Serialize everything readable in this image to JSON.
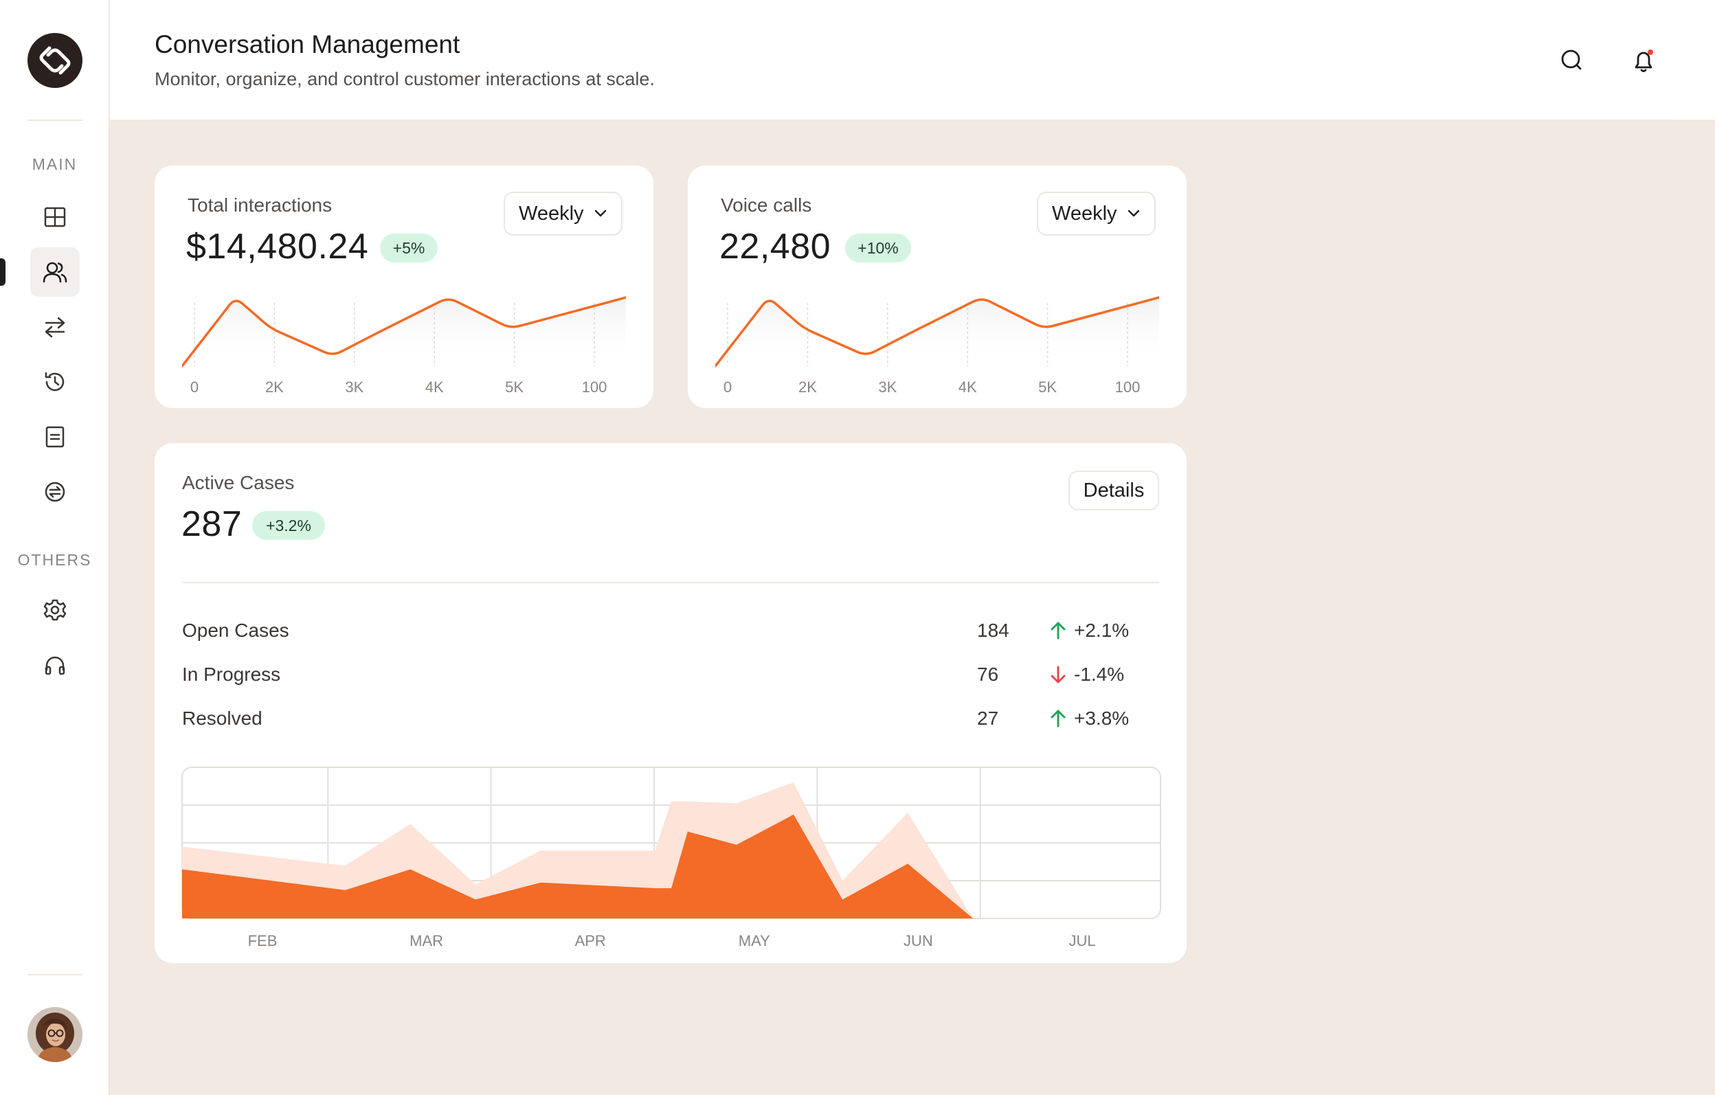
{
  "sidebar": {
    "main_label": "MAIN",
    "others_label": "OTHERS",
    "items": [
      {
        "icon": "dashboard-icon"
      },
      {
        "icon": "users-icon",
        "active": true
      },
      {
        "icon": "transfer-icon"
      },
      {
        "icon": "history-icon"
      },
      {
        "icon": "document-icon"
      },
      {
        "icon": "billing-icon"
      }
    ],
    "other_items": [
      {
        "icon": "settings-icon"
      },
      {
        "icon": "support-icon"
      }
    ]
  },
  "header": {
    "title": "Conversation Management",
    "subtitle": "Monitor, organize, and control customer interactions at scale.",
    "notification_dot_color": "#f04438"
  },
  "cards": {
    "total": {
      "label": "Total interactions",
      "value": "$14,480.24",
      "badge": "+5%",
      "period": "Weekly"
    },
    "voice": {
      "label": "Voice calls",
      "value": "22,480",
      "badge": "+10%",
      "period": "Weekly"
    },
    "active": {
      "label": "Active Cases",
      "value": "287",
      "badge": "+3.2%",
      "details_label": "Details",
      "rows": [
        {
          "label": "Open Cases",
          "count": "184",
          "delta": "+2.1%",
          "trend": "up"
        },
        {
          "label": "In Progress",
          "count": "76",
          "delta": "-1.4%",
          "trend": "down"
        },
        {
          "label": "Resolved",
          "count": "27",
          "delta": "+3.8%",
          "trend": "up"
        }
      ]
    }
  },
  "colors": {
    "accent": "#f36b26",
    "accent_light": "#fde3d8",
    "up": "#22a559",
    "down": "#e5484d",
    "badge_bg": "#d5f5e2"
  },
  "chart_data": [
    {
      "type": "line",
      "categories": [
        "0",
        "2K",
        "3K",
        "4K",
        "5K",
        "100"
      ],
      "values": [
        0,
        1,
        0.55,
        0.15,
        0.55,
        1,
        0.55,
        1
      ],
      "x": [
        0,
        0.6,
        1.0,
        1.7,
        2.3,
        3.0,
        3.7,
        5.0
      ]
    },
    {
      "type": "line",
      "categories": [
        "0",
        "2K",
        "3K",
        "4K",
        "5K",
        "100"
      ],
      "values": [
        0,
        1,
        0.55,
        0.15,
        0.55,
        1,
        0.55,
        1
      ],
      "x": [
        0,
        0.6,
        1.0,
        1.7,
        2.3,
        3.0,
        3.7,
        5.0
      ]
    },
    {
      "type": "area",
      "categories": [
        "FEB",
        "MAR",
        "APR",
        "MAY",
        "JUN",
        "JUL"
      ],
      "ylim": [
        0,
        4
      ],
      "series": [
        {
          "x": [
            0,
            1.0,
            1.4,
            1.8,
            2.2,
            2.9,
            3.0,
            3.1,
            3.4,
            3.75,
            4.05,
            4.45,
            4.85,
            5.2,
            5.5,
            6.0
          ],
          "values": [
            1.9,
            1.4,
            2.5,
            0.9,
            1.8,
            1.8,
            3.1,
            3.1,
            3.05,
            3.6,
            1.0,
            2.8,
            0.0,
            0.0,
            0.0,
            0.0
          ]
        },
        {
          "x": [
            0,
            1.0,
            1.4,
            1.8,
            2.2,
            2.9,
            3.0,
            3.1,
            3.4,
            3.75,
            4.05,
            4.45,
            4.85,
            5.2,
            5.5,
            6.0
          ],
          "values": [
            1.3,
            0.75,
            1.3,
            0.5,
            0.95,
            0.8,
            0.8,
            2.3,
            1.95,
            2.75,
            0.5,
            1.45,
            0.0,
            0.0,
            0.0,
            0.0
          ]
        }
      ]
    }
  ]
}
